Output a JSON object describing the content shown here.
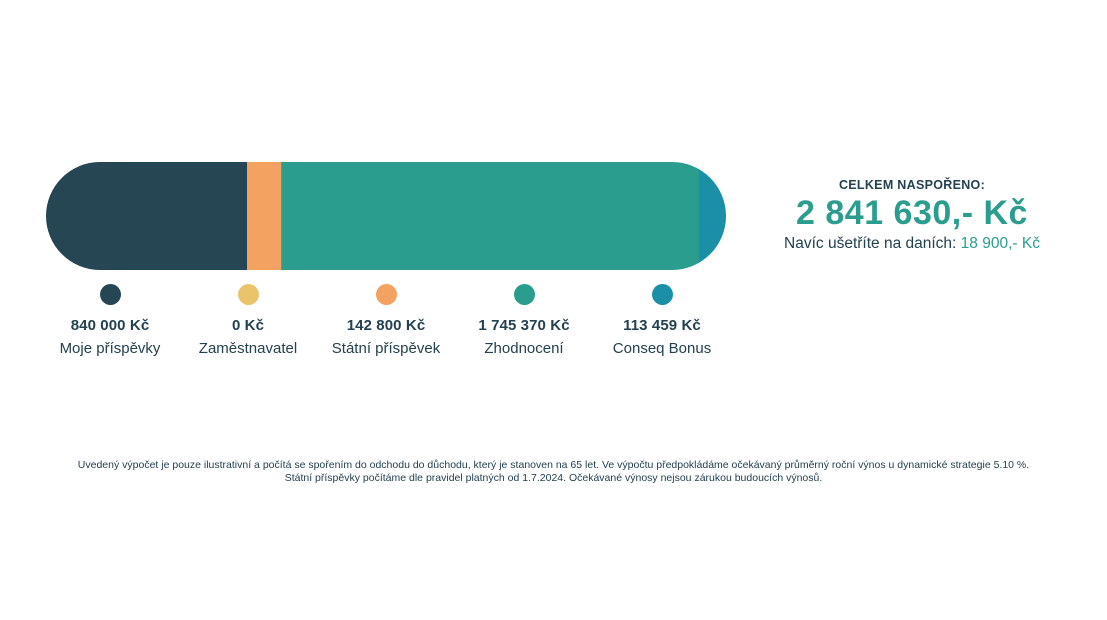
{
  "chart_data": {
    "type": "bar",
    "orientation": "horizontal",
    "stacked": true,
    "series": [
      {
        "name": "Moje příspěvky",
        "value": 840000,
        "value_label": "840 000 Kč",
        "color": "#264653"
      },
      {
        "name": "Zaměstnavatel",
        "value": 0,
        "value_label": "0 Kč",
        "color": "#e9c46a"
      },
      {
        "name": "Státní příspěvek",
        "value": 142800,
        "value_label": "142 800 Kč",
        "color": "#f4a261"
      },
      {
        "name": "Zhodnocení",
        "value": 1745370,
        "value_label": "1 745 370 Kč",
        "color": "#2a9d8f"
      },
      {
        "name": "Conseq Bonus",
        "value": 113459,
        "value_label": "113 459 Kč",
        "color": "#1b8fa6"
      }
    ],
    "xlim": [
      0,
      2841630
    ]
  },
  "summary": {
    "heading": "CELKEM NASPOŘENO:",
    "total": "2 841 630,- Kč",
    "tax_prefix": "Navíc ušetříte na daních: ",
    "tax_value": "18 900,- Kč"
  },
  "disclaimer": {
    "line1": "Uvedený výpočet je pouze ilustrativní a počítá se spořením do odchodu do důchodu, který je stanoven na 65 let. Ve výpočtu předpokládáme očekávaný průměrný roční výnos u dynamické strategie 5.10 %.",
    "line2": "Státní příspěvky počítáme dle pravidel platných od 1.7.2024. Očekávané výnosy nejsou zárukou budoucích výnosů."
  }
}
